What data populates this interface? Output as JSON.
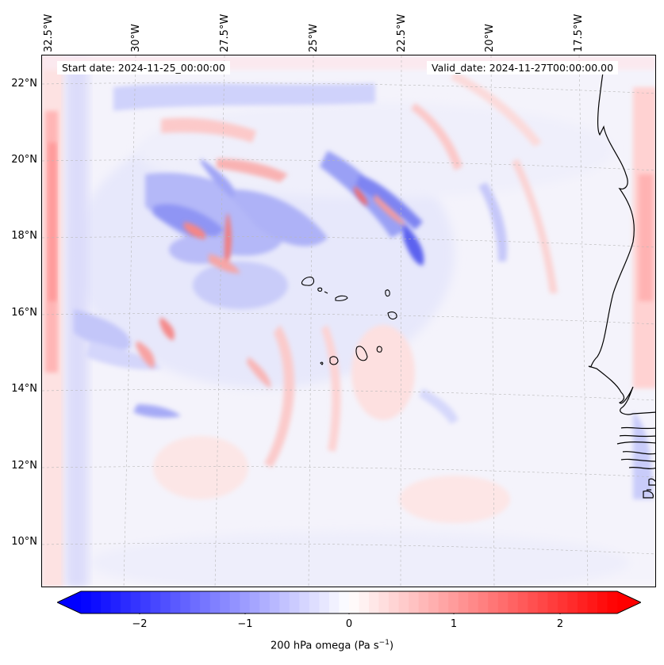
{
  "map": {
    "type": "contour-field",
    "variable": "200 hPa omega",
    "units_main": "200 hPa omega (Pa s",
    "units_exp": "−1",
    "units_close": ")",
    "start_date": "Start date: 2024-11-25_00:00:00",
    "valid_date": "Valid_date: 2024-11-27T00:00:00.00",
    "lon_labels": [
      "32.5°W",
      "30°W",
      "27.5°W",
      "25°W",
      "22.5°W",
      "20°W",
      "17.5°W"
    ],
    "lat_labels": [
      "22°N",
      "20°N",
      "18°N",
      "16°N",
      "14°N",
      "12°N",
      "10°N"
    ],
    "colorbar": {
      "min": -2.7,
      "max": 2.7,
      "extend": "both",
      "ticks": [
        "−2",
        "−1",
        "0",
        "1",
        "2"
      ],
      "tick_values": [
        -2,
        -1,
        0,
        1,
        2
      ],
      "low_color": "#0000ff",
      "mid_color": "#ffffff",
      "high_color": "#ff0000"
    },
    "coast_color": "#000000",
    "grid_color": "#b8b8b8"
  }
}
